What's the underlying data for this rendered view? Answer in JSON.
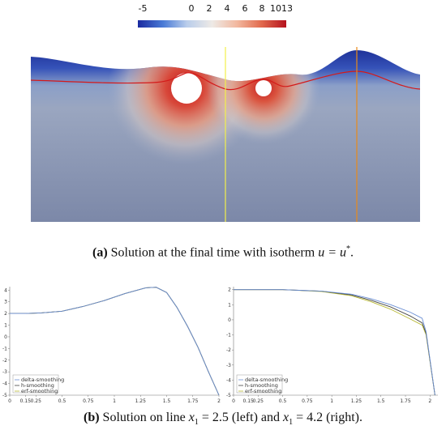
{
  "colorbar": {
    "ticks": [
      "-5",
      "0",
      "2",
      "4",
      "6",
      "8",
      "10",
      "13"
    ],
    "colors": [
      "#1a2aa0",
      "#4a7bd6",
      "#b9cdeb",
      "#eeeae6",
      "#f2b79e",
      "#e26b4e",
      "#b5121e"
    ]
  },
  "caption_a": {
    "label": "(a)",
    "text": " Solution at the final time with isotherm ",
    "math": "u = u",
    "sup": "*",
    "end": "."
  },
  "caption_b": {
    "label": "(b)",
    "text1": " Solution on line ",
    "math1": "x",
    "sub1": "1",
    "val1": " = 2.5 (left) and ",
    "math2": "x",
    "sub2": "1",
    "val2": " = 4.2 (right)."
  },
  "legend": {
    "items": [
      "delta-smoothing",
      "h-smoothing",
      "erf-smoothing"
    ],
    "colors": [
      "#6b8fd4",
      "#444444",
      "#b8b832"
    ]
  },
  "chart_data": [
    {
      "type": "line",
      "x_ticks": [
        "0",
        "0.15",
        "0.25",
        "0.5",
        "0.75",
        "1",
        "1.25",
        "1.5",
        "1.75",
        "2"
      ],
      "y_ticks": [
        "4",
        "3",
        "2",
        "1",
        "0",
        "-1",
        "-2",
        "-3",
        "-4",
        "-5"
      ],
      "xlim": [
        0,
        2
      ],
      "ylim": [
        -5,
        4.3
      ],
      "series": [
        {
          "x": [
            0,
            0.15,
            0.3,
            0.5,
            0.7,
            0.9,
            1.1,
            1.3,
            1.4,
            1.5,
            1.6,
            1.7,
            1.8,
            1.9,
            2.0
          ],
          "values": [
            2.0,
            2.0,
            2.05,
            2.2,
            2.6,
            3.1,
            3.7,
            4.2,
            4.25,
            3.8,
            2.5,
            0.9,
            -0.9,
            -3.0,
            -5.0
          ]
        },
        {
          "x": [
            0,
            0.15,
            0.3,
            0.5,
            0.7,
            0.9,
            1.1,
            1.3,
            1.4,
            1.5,
            1.6,
            1.7,
            1.8,
            1.9,
            2.0
          ],
          "values": [
            2.0,
            2.0,
            2.05,
            2.2,
            2.6,
            3.1,
            3.7,
            4.2,
            4.25,
            3.8,
            2.5,
            0.9,
            -0.9,
            -3.0,
            -5.0
          ]
        },
        {
          "x": [
            0,
            0.15,
            0.3,
            0.5,
            0.7,
            0.9,
            1.1,
            1.3,
            1.4,
            1.5,
            1.6,
            1.7,
            1.8,
            1.9,
            2.0
          ],
          "values": [
            2.0,
            2.0,
            2.05,
            2.2,
            2.6,
            3.1,
            3.7,
            4.2,
            4.25,
            3.8,
            2.5,
            0.9,
            -0.9,
            -3.0,
            -5.0
          ]
        }
      ]
    },
    {
      "type": "line",
      "x_ticks": [
        "0",
        "0.15",
        "0.25",
        "0.5",
        "0.75",
        "1",
        "1.25",
        "1.5",
        "1.75",
        "2"
      ],
      "y_ticks": [
        "2",
        "1",
        "0",
        "-1",
        "-2",
        "-3",
        "-4",
        "-5"
      ],
      "xlim": [
        0,
        2.08
      ],
      "ylim": [
        -5,
        2.2
      ],
      "series": [
        {
          "x": [
            0,
            0.5,
            0.9,
            1.2,
            1.4,
            1.6,
            1.8,
            1.92,
            1.96,
            2.05
          ],
          "values": [
            2.0,
            2.0,
            1.9,
            1.7,
            1.4,
            1.0,
            0.5,
            0.1,
            -0.8,
            -5.0
          ]
        },
        {
          "x": [
            0,
            0.5,
            0.9,
            1.2,
            1.4,
            1.6,
            1.8,
            1.92,
            1.96,
            2.05
          ],
          "values": [
            2.0,
            2.0,
            1.9,
            1.65,
            1.3,
            0.85,
            0.25,
            -0.2,
            -0.9,
            -5.0
          ]
        },
        {
          "x": [
            0,
            0.5,
            0.9,
            1.2,
            1.4,
            1.6,
            1.8,
            1.92,
            1.96,
            2.05
          ],
          "values": [
            2.0,
            2.0,
            1.88,
            1.6,
            1.2,
            0.7,
            0.05,
            -0.35,
            -1.0,
            -5.0
          ]
        }
      ]
    }
  ]
}
